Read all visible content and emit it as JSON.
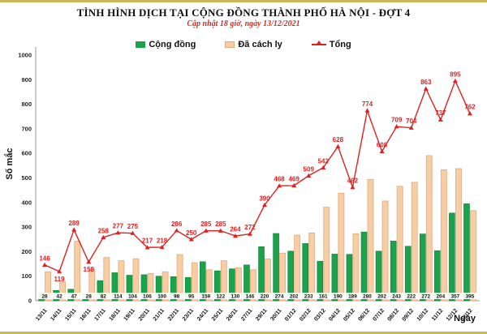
{
  "header": {
    "title": "TÌNH HÌNH DỊCH TẠI CỘNG ĐỒNG THÀNH PHỐ HÀ NỘI - ĐỢT 4",
    "subtitle": "Cập nhật 18 giờ, ngày 13/12/2021"
  },
  "legend": {
    "cong_dong": "Cộng đồng",
    "da_cach_ly": "Đã cách ly",
    "tong": "Tổng"
  },
  "colors": {
    "frame_border": "#c9b95c",
    "green_bar": "#1aa34a",
    "tan_bar": "#f7cda4",
    "tan_border": "#e2a97b",
    "total_line": "#e02020",
    "subtitle_red": "#cf2e24"
  },
  "chart_data": {
    "type": "bar",
    "subtype": "grouped-bars-with-line",
    "title": "TÌNH HÌNH DỊCH TẠI CỘNG ĐỒNG THÀNH PHỐ HÀ NỘI - ĐỢT 4",
    "subtitle": "Cập nhật 18 giờ, ngày 13/12/2021",
    "xlabel": "Ngày",
    "ylabel": "Số mắc",
    "ylim": [
      0,
      1000
    ],
    "ytick_step": 100,
    "grid": false,
    "legend_position": "top",
    "categories": [
      "13/11",
      "14/11",
      "15/11",
      "16/11",
      "17/11",
      "18/11",
      "19/11",
      "20/11",
      "21/11",
      "22/11",
      "23/11",
      "24/11",
      "25/11",
      "26/11",
      "27/11",
      "29/11",
      "30/11",
      "01/12",
      "02/12",
      "03/12",
      "04/12",
      "05/12",
      "06/12",
      "07/12",
      "08/12",
      "09/12",
      "10/12",
      "11/12",
      "12/12",
      "13/12"
    ],
    "series": [
      {
        "name": "Cộng đồng",
        "chart": "bar",
        "color": "#1aa34a",
        "values": [
          28,
          42,
          47,
          28,
          82,
          114,
          104,
          106,
          100,
          98,
          95,
          159,
          122,
          130,
          146,
          220,
          274,
          202,
          233,
          161,
          190,
          189,
          280,
          202,
          243,
          222,
          272,
          204,
          357,
          395
        ]
      },
      {
        "name": "Đã cách ly",
        "chart": "bar",
        "color": "#f7cda4",
        "values": [
          118,
          77,
          242,
          130,
          176,
          163,
          171,
          111,
          118,
          188,
          155,
          126,
          163,
          134,
          126,
          170,
          194,
          267,
          276,
          381,
          438,
          273,
          494,
          406,
          466,
          482,
          591,
          533,
          538,
          367
        ]
      },
      {
        "name": "Tổng",
        "chart": "line",
        "color": "#e02020",
        "values": [
          146,
          119,
          289,
          158,
          258,
          277,
          275,
          217,
          218,
          286,
          250,
          285,
          285,
          264,
          272,
          390,
          468,
          469,
          509,
          542,
          628,
          462,
          774,
          608,
          709,
          704,
          863,
          737,
          895,
          762
        ]
      }
    ]
  }
}
